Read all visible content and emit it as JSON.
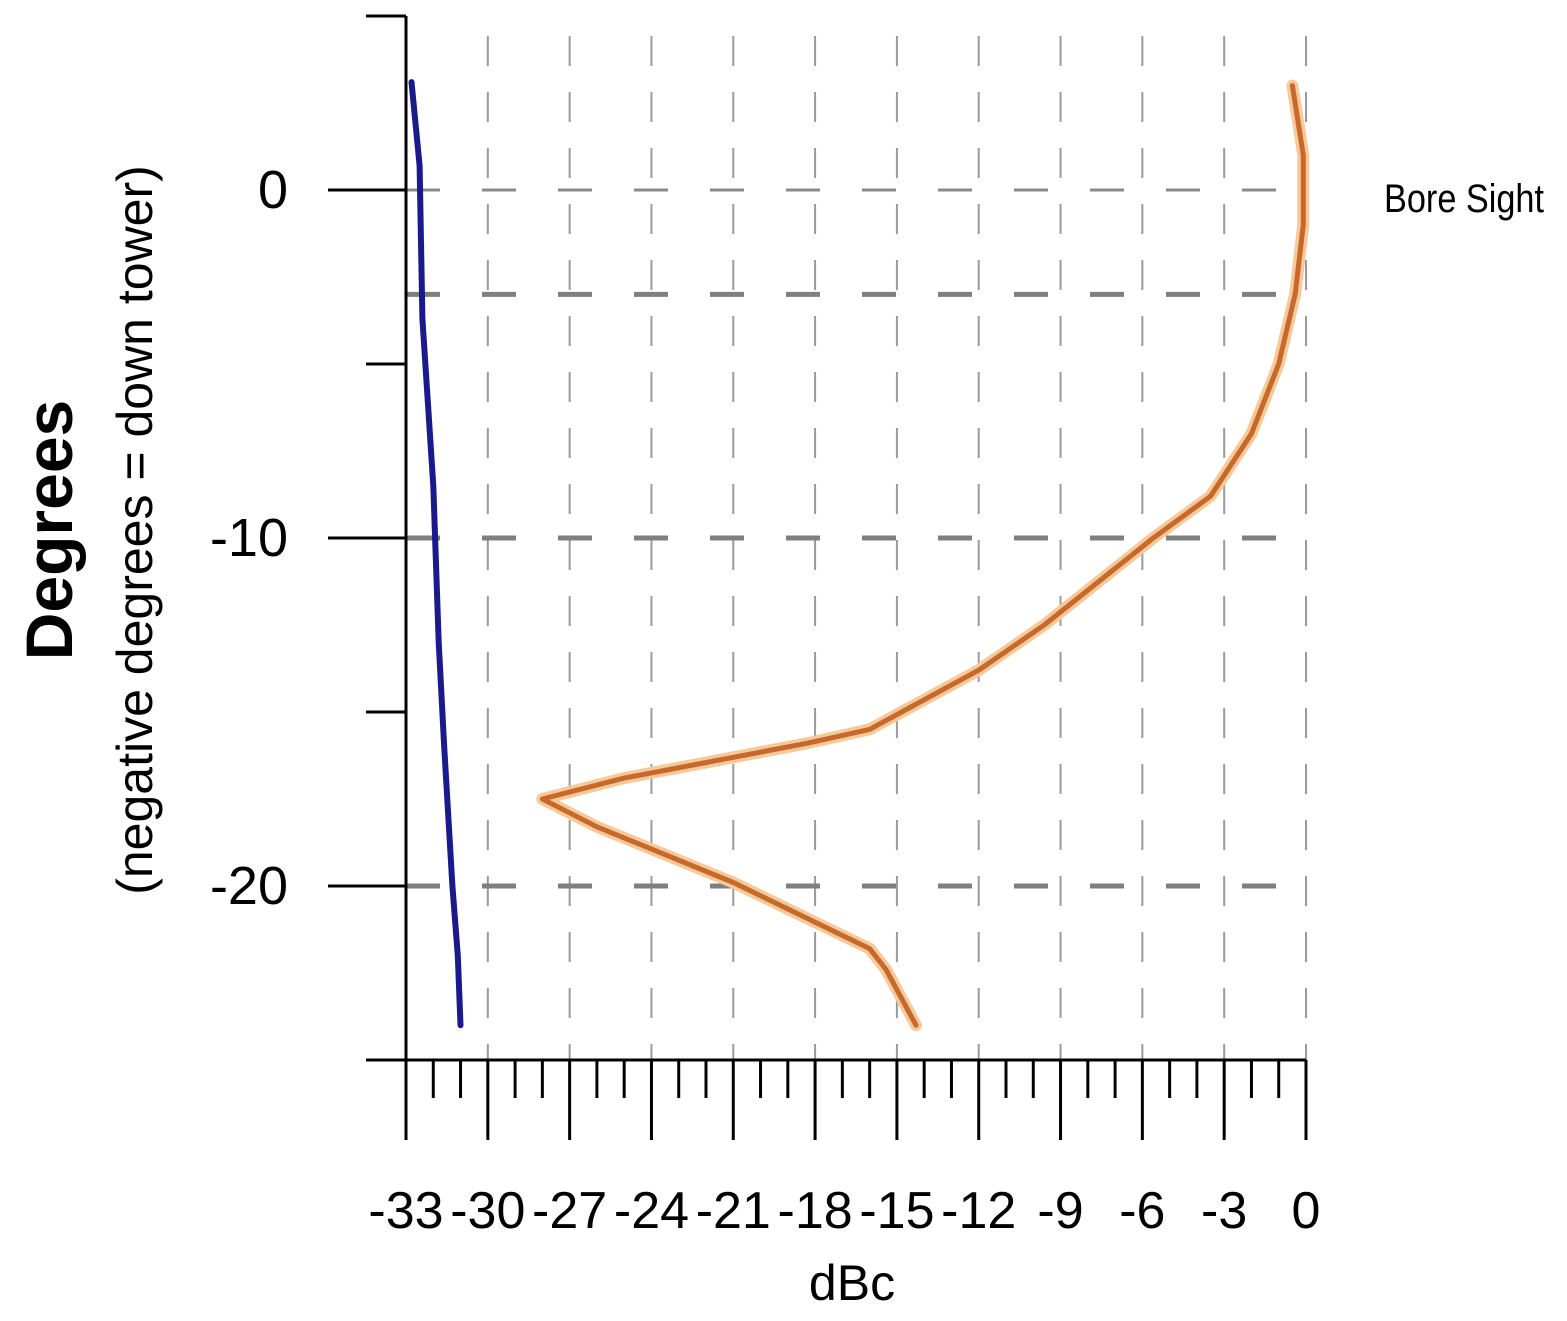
{
  "chart_data": {
    "type": "line",
    "orientation": "horizontal-value-axis",
    "title": "",
    "xlabel": "dBc",
    "ylabel": "Degrees",
    "ylabel_sub": "(negative degrees = down tower)",
    "xlim": [
      -33,
      0
    ],
    "ylim": [
      -25,
      5
    ],
    "x_ticks": [
      -33,
      -30,
      -27,
      -24,
      -21,
      -18,
      -15,
      -12,
      -9,
      -6,
      -3,
      0
    ],
    "x_tick_labels": [
      "-33",
      "-30",
      "-27",
      "-24",
      "-21",
      "-18",
      "-15",
      "-12",
      "-9",
      "-6",
      "-3",
      "0"
    ],
    "y_ticks": [
      0,
      -10,
      -20
    ],
    "y_tick_labels": [
      "0",
      "-10",
      "-20"
    ],
    "grid": true,
    "annotations": [
      {
        "text": "Bore Sight",
        "y": 0
      }
    ],
    "series": [
      {
        "color": "#1a1a8c",
        "points": [
          {
            "x": -32.8,
            "y": 3.1
          },
          {
            "x": -32.5,
            "y": 0.7
          },
          {
            "x": -32.4,
            "y": -3.7
          },
          {
            "x": -32.0,
            "y": -8.5
          },
          {
            "x": -31.8,
            "y": -13.0
          },
          {
            "x": -31.6,
            "y": -16.0
          },
          {
            "x": -31.3,
            "y": -20.0
          },
          {
            "x": -31.1,
            "y": -22.0
          },
          {
            "x": -31.0,
            "y": -24.0
          }
        ]
      },
      {
        "color": "#c8692c",
        "points": [
          {
            "x": -0.5,
            "y": 3.0
          },
          {
            "x": -0.1,
            "y": 1.0
          },
          {
            "x": -0.1,
            "y": -1.0
          },
          {
            "x": -0.4,
            "y": -3.0
          },
          {
            "x": -1.0,
            "y": -5.0
          },
          {
            "x": -2.0,
            "y": -7.0
          },
          {
            "x": -3.5,
            "y": -8.8
          },
          {
            "x": -5.6,
            "y": -10.0
          },
          {
            "x": -9.6,
            "y": -12.5
          },
          {
            "x": -12.0,
            "y": -13.8
          },
          {
            "x": -16.0,
            "y": -15.5
          },
          {
            "x": -18.3,
            "y": -15.9
          },
          {
            "x": -25.0,
            "y": -16.9
          },
          {
            "x": -28.0,
            "y": -17.5
          },
          {
            "x": -26.0,
            "y": -18.3
          },
          {
            "x": -21.0,
            "y": -19.9
          },
          {
            "x": -16.0,
            "y": -21.8
          },
          {
            "x": -15.4,
            "y": -22.4
          },
          {
            "x": -14.3,
            "y": -24.0
          }
        ]
      }
    ]
  }
}
